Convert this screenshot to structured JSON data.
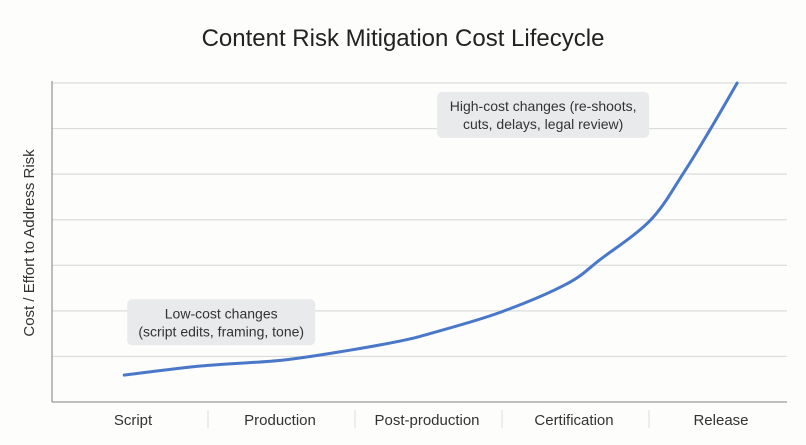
{
  "chart_data": {
    "type": "line",
    "title": "Content Risk Mitigation Cost Lifecycle",
    "xlabel": "",
    "ylabel": "Cost / Effort to Address Risk",
    "categories": [
      "Script",
      "Production",
      "Post-production",
      "Certification",
      "Release"
    ],
    "ylim": [
      0,
      7
    ],
    "xlim": [
      -0.5,
      4.45
    ],
    "grid": true,
    "y_tick_labels_shown": false,
    "series": [
      {
        "color": "#4a78c8",
        "x": [
          -0.06,
          0.46,
          1.02,
          1.48,
          1.82,
          2.03,
          2.5,
          2.95,
          3.18,
          3.52,
          3.74,
          3.93,
          4.11
        ],
        "y": [
          0.59,
          0.79,
          0.92,
          1.14,
          1.34,
          1.51,
          1.97,
          2.59,
          3.13,
          3.99,
          5.0,
          6.0,
          7.0
        ]
      }
    ],
    "annotations": [
      {
        "lines": [
          "Low-cost changes",
          "(script edits, framing, tone)"
        ],
        "x": 0.6,
        "y": 1.75
      },
      {
        "lines": [
          "High-cost changes (re-shoots,",
          "cuts, delays, legal review)"
        ],
        "x": 2.79,
        "y": 6.3
      }
    ]
  }
}
